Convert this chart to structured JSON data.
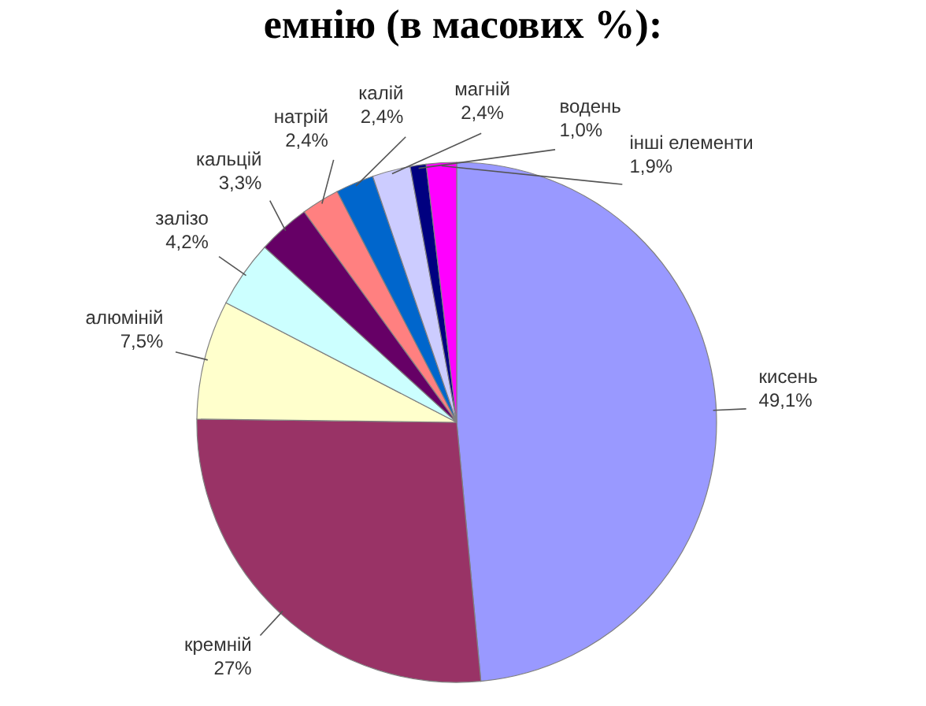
{
  "chart_data": {
    "type": "pie",
    "title": "емнію (в масових %):",
    "categories": [
      "кисень",
      "кремній",
      "алюміній",
      "залізо",
      "кальцій",
      "натрій",
      "калій",
      "магній",
      "водень",
      "інші елементи"
    ],
    "values": [
      49.1,
      27,
      7.5,
      4.2,
      3.3,
      2.4,
      2.4,
      2.4,
      1.0,
      1.9
    ],
    "value_labels": [
      "49,1%",
      "27%",
      "7,5%",
      "4,2%",
      "3,3%",
      "2,4%",
      "2,4%",
      "2,4%",
      "1,0%",
      "1,9%"
    ],
    "colors": [
      "#9999ff",
      "#993366",
      "#ffffcc",
      "#ccffff",
      "#660066",
      "#ff8080",
      "#0066cc",
      "#ccccff",
      "#000080",
      "#ff00ff"
    ]
  }
}
